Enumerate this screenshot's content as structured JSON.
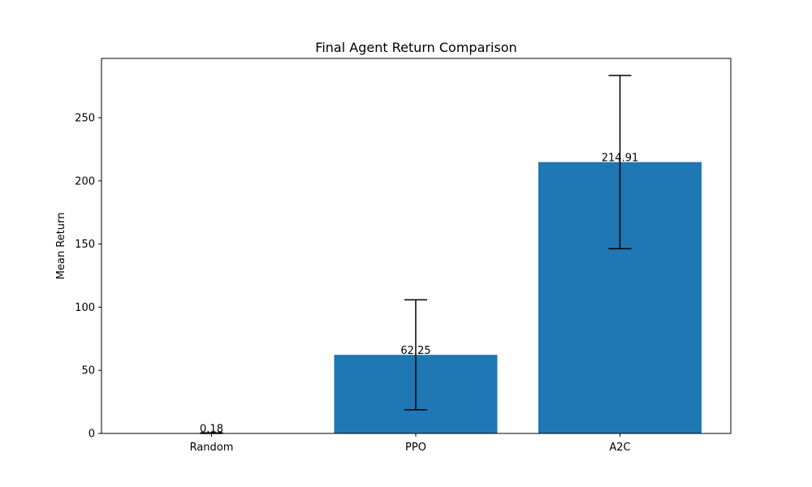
{
  "chart_data": {
    "type": "bar",
    "title": "Final Agent Return Comparison",
    "xlabel": "",
    "ylabel": "Mean Return",
    "categories": [
      "Random",
      "PPO",
      "A2C"
    ],
    "values": [
      0.18,
      62.25,
      214.91
    ],
    "value_labels": [
      "0.18",
      "62.25",
      "214.91"
    ],
    "error_low": [
      0.0,
      18.7,
      146.3
    ],
    "error_high": [
      0.5,
      105.8,
      283.5
    ],
    "ylim": [
      0,
      297
    ],
    "yticks": [
      0,
      50,
      100,
      150,
      200,
      250
    ],
    "grid": false,
    "bar_color": "#1f77b4",
    "error_color": "#000000"
  }
}
